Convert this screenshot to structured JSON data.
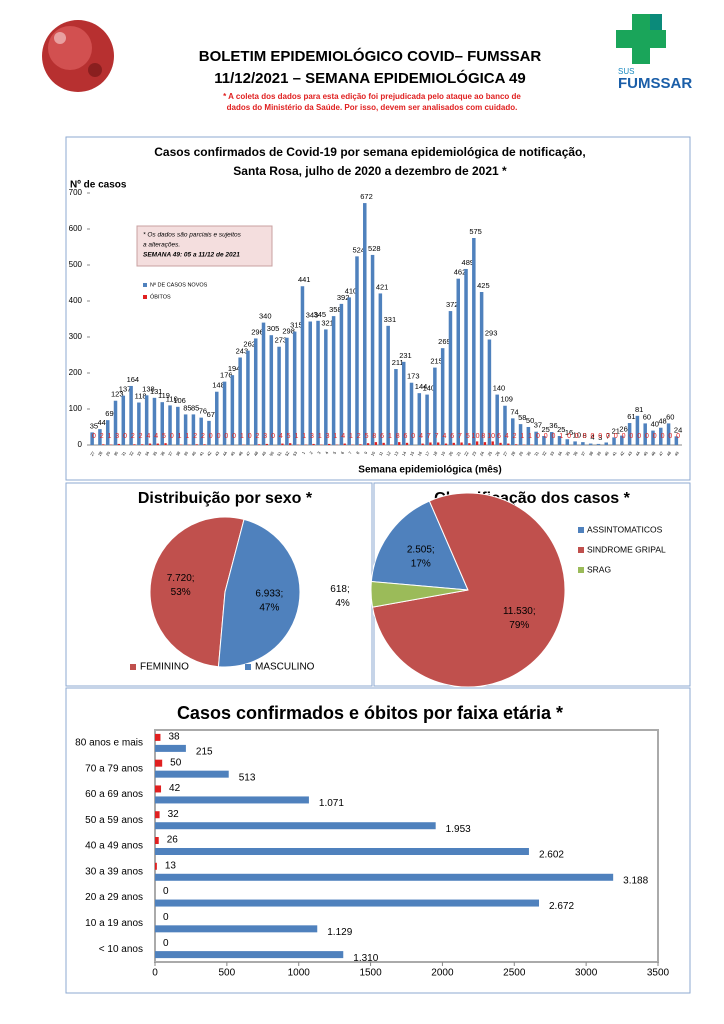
{
  "header": {
    "title_line1": "BOLETIM EPIDEMIOLÓGICO COVID– FUMSSAR",
    "title_line2": "11/12/2021 – SEMANA EPIDEMIOLÓGICA 49",
    "note_line1": "* A coleta dos dados para esta edição foi prejudicada pelo ataque ao banco de",
    "note_line2": "dados do Ministério da Saúde. Por isso, devem ser analisados com cuidado.",
    "logo_sus": "SUS",
    "logo_name": "FUMSSAR"
  },
  "chart_data": [
    {
      "type": "bar",
      "title_line1": "Casos confirmados de Covid-19 por semana epidemiológica de notificação,",
      "title_line2": "Santa Rosa, julho  de 2020 a dezembro de 2021 *",
      "y_label": "Nº de casos",
      "x_label": "Semana epidemiológica (mês)",
      "notes": [
        "* Os dados são parciais e sujeitos",
        "a alterações.",
        "SEMANA 49: 05 a 11/12 de 2021"
      ],
      "categories": [
        "27",
        "28",
        "29",
        "30",
        "31",
        "32",
        "33",
        "34",
        "35",
        "36",
        "37",
        "38",
        "39",
        "40",
        "41",
        "42",
        "43",
        "44",
        "45",
        "46",
        "47",
        "48",
        "49",
        "50",
        "51",
        "52",
        "53",
        "1",
        "2",
        "3",
        "4",
        "5",
        "6",
        "7",
        "8",
        "9",
        "10",
        "11",
        "12",
        "13",
        "14",
        "15",
        "16",
        "17",
        "18",
        "19",
        "20",
        "21",
        "22",
        "23",
        "24",
        "25",
        "26",
        "27",
        "28",
        "29",
        "30",
        "31",
        "32",
        "33",
        "34",
        "35",
        "36",
        "37",
        "38",
        "39",
        "40",
        "41",
        "42",
        "43",
        "44",
        "45",
        "46",
        "47",
        "48",
        "49"
      ],
      "series": [
        {
          "name": "Nº DE CASOS NOVOS",
          "color": "#4f81bd",
          "values": [
            35,
            44,
            69,
            123,
            137,
            164,
            118,
            138,
            131,
            119,
            110,
            106,
            85,
            85,
            76,
            67,
            148,
            176,
            194,
            243,
            262,
            296,
            340,
            305,
            273,
            298,
            315,
            441,
            343,
            345,
            321,
            358,
            392,
            410,
            524,
            672,
            528,
            421,
            331,
            211,
            231,
            173,
            144,
            140,
            215,
            269,
            372,
            462,
            489,
            575,
            425,
            293,
            140,
            109,
            74,
            58,
            50,
            37,
            25,
            36,
            25,
            16,
            10,
            8,
            4,
            3,
            7,
            21,
            26,
            61,
            81,
            60,
            40,
            48,
            60,
            24
          ]
        },
        {
          "name": "ÓBITOS",
          "color": "#e02020",
          "values": [
            0,
            2,
            1,
            3,
            0,
            2,
            2,
            4,
            4,
            5,
            0,
            1,
            1,
            2,
            2,
            0,
            0,
            0,
            0,
            1,
            0,
            2,
            3,
            0,
            4,
            5,
            1,
            1,
            3,
            1,
            3,
            1,
            4,
            1,
            2,
            5,
            8,
            6,
            1,
            8,
            6,
            0,
            4,
            7,
            7,
            4,
            6,
            7,
            5,
            10,
            8,
            10,
            6,
            4,
            2,
            1,
            1,
            0,
            0,
            0,
            1,
            0,
            0,
            0,
            0,
            0,
            0,
            0,
            0,
            0,
            0,
            0,
            0,
            0,
            0,
            0
          ]
        }
      ],
      "ylim": [
        0,
        700
      ],
      "yticks": [
        0,
        100,
        200,
        300,
        400,
        500,
        600,
        700
      ],
      "grid": false
    },
    {
      "type": "pie",
      "title": "Distribuição por sexo *",
      "categories": [
        "FEMININO",
        "MASCULINO"
      ],
      "values": [
        7720,
        6933
      ],
      "value_labels": [
        [
          "7.720;",
          "53%"
        ],
        [
          "6.933;",
          "47%"
        ]
      ],
      "colors": [
        "#c0504d",
        "#4f81bd"
      ],
      "legend": "bottom"
    },
    {
      "type": "pie",
      "title": "Classificação dos casos *",
      "categories": [
        "ASSINTOMATICOS",
        "SINDROME GRIPAL",
        "SRAG"
      ],
      "values": [
        2505,
        11530,
        618
      ],
      "value_labels": [
        [
          "2.505;",
          "17%"
        ],
        [
          "11.530;",
          "79%"
        ],
        [
          "618;",
          "4%"
        ]
      ],
      "colors": [
        "#4f81bd",
        "#c0504d",
        "#9bbb59"
      ],
      "legend": "right"
    },
    {
      "type": "barh",
      "title": "Casos confirmados e óbitos  por faixa etária *",
      "categories": [
        "80 anos e mais",
        "70 a 79 anos",
        "60 a 69 anos",
        "50 a 59 anos",
        "40 a 49 anos",
        "30 a 39 anos",
        "20 a 29 anos",
        "10 a 19 anos",
        "< 10 anos"
      ],
      "series": [
        {
          "name": "Casos",
          "color": "#4f81bd",
          "values": [
            215,
            513,
            1071,
            1953,
            2602,
            3188,
            2672,
            1129,
            1310
          ],
          "value_labels": [
            "215",
            "513",
            "1.071",
            "1.953",
            "2.602",
            "3.188",
            "2.672",
            "1.129",
            "1.310"
          ]
        },
        {
          "name": "Óbitos",
          "color": "#e02020",
          "values": [
            38,
            50,
            42,
            32,
            26,
            13,
            0,
            0,
            0
          ]
        }
      ],
      "xlim": [
        0,
        3500
      ],
      "xticks": [
        0,
        500,
        1000,
        1500,
        2000,
        2500,
        3000,
        3500
      ]
    }
  ]
}
